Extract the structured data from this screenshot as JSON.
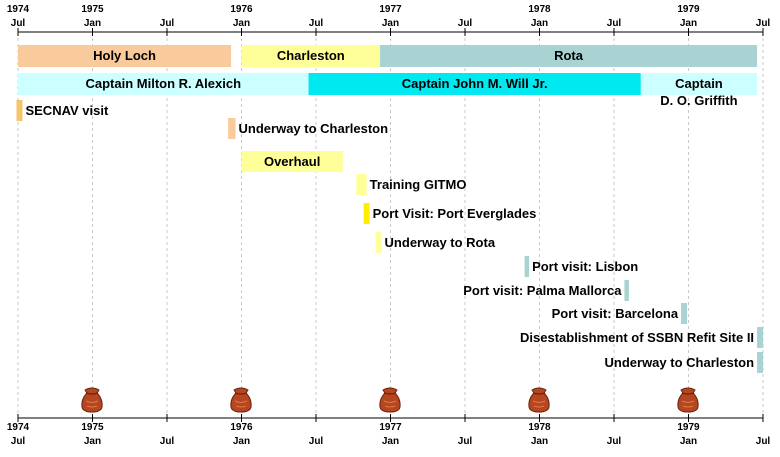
{
  "chart_data": {
    "type": "gantt",
    "xlim": [
      1974.5,
      1979.5
    ],
    "xticks": [
      {
        "value": 1974.5,
        "label": "1974\nJul"
      },
      {
        "value": 1975.0,
        "label": "1975\nJan"
      },
      {
        "value": 1975.5,
        "label": "Jul"
      },
      {
        "value": 1976.0,
        "label": "1976\nJan"
      },
      {
        "value": 1976.5,
        "label": "Jul"
      },
      {
        "value": 1977.0,
        "label": "1977\nJan"
      },
      {
        "value": 1977.5,
        "label": "Jul"
      },
      {
        "value": 1978.0,
        "label": "1978\nJan"
      },
      {
        "value": 1978.5,
        "label": "Jul"
      },
      {
        "value": 1979.0,
        "label": "1979\nJan"
      },
      {
        "value": 1979.5,
        "label": "Jul"
      }
    ],
    "grid": true,
    "lanes": [
      {
        "bars": [
          {
            "label": "Holy Loch",
            "start": 1974.5,
            "end": 1975.93,
            "color": "#f9cb9c"
          },
          {
            "label": "Charleston",
            "start": 1976.0,
            "end": 1976.93,
            "color": "#ffff99"
          },
          {
            "label": "Rota",
            "start": 1976.93,
            "end": 1979.46,
            "color": "#a9d3d3"
          }
        ]
      },
      {
        "bars": [
          {
            "label": "Captain Milton R. Alexich",
            "start": 1974.5,
            "end": 1976.45,
            "color": "#ccffff"
          },
          {
            "label": "Captain John M. Will Jr.",
            "start": 1976.45,
            "end": 1978.68,
            "color": "#00e8f0"
          },
          {
            "label": "Captain\nD. O. Griffith",
            "start": 1978.68,
            "end": 1979.46,
            "color": "#ccffff"
          }
        ]
      }
    ],
    "events": [
      {
        "label": "SECNAV visit",
        "start": 1974.49,
        "end": 1974.53,
        "color": "#f6c26a",
        "label_position": "right"
      },
      {
        "label": "Underway to Charleston",
        "start": 1975.91,
        "end": 1975.96,
        "color": "#f9cb9c",
        "label_position": "right"
      },
      {
        "label": "Overhaul",
        "start": 1976.0,
        "end": 1976.68,
        "color": "#ffff99",
        "label_position": "inside"
      },
      {
        "label": "Training GITMO",
        "start": 1976.77,
        "end": 1976.84,
        "color": "#ffff99",
        "label_position": "right"
      },
      {
        "label": "Port Visit: Port Everglades",
        "start": 1976.82,
        "end": 1976.86,
        "color": "#ffee00",
        "label_position": "right"
      },
      {
        "label": "Underway to Rota",
        "start": 1976.9,
        "end": 1976.94,
        "color": "#ffff99",
        "label_position": "right"
      },
      {
        "label": "Port visit: Lisbon",
        "start": 1977.9,
        "end": 1977.93,
        "color": "#a9d3d3",
        "label_position": "right"
      },
      {
        "label": "Port visit: Palma Mallorca",
        "start": 1978.57,
        "end": 1978.6,
        "color": "#a9d3d3",
        "label_position": "left"
      },
      {
        "label": "Port visit: Barcelona",
        "start": 1978.95,
        "end": 1978.99,
        "color": "#a9d3d3",
        "label_position": "left"
      },
      {
        "label": "Disestablishment of SSBN Refit Site II",
        "start": 1979.46,
        "end": 1979.5,
        "color": "#a9d3d3",
        "label_position": "left"
      },
      {
        "label": "Underway to Charleston",
        "start": 1979.46,
        "end": 1979.5,
        "color": "#a9d3d3",
        "label_position": "left"
      }
    ]
  }
}
